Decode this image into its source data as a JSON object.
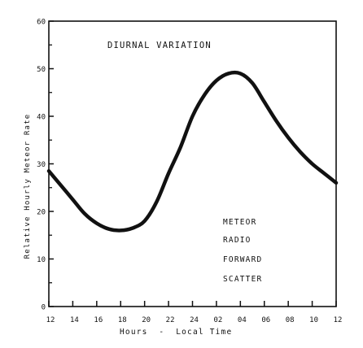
{
  "chart_data": {
    "type": "line",
    "title": "DIURNAL VARIATION",
    "xlabel": "Hours - Local Time",
    "ylabel": "Relative Hourly Meteor Rate",
    "x_tick_labels": [
      "12",
      "14",
      "16",
      "18",
      "20",
      "22",
      "24",
      "02",
      "04",
      "06",
      "08",
      "10",
      "12"
    ],
    "y_ticks": [
      0,
      10,
      20,
      30,
      40,
      50,
      60
    ],
    "xlim": [
      12,
      36
    ],
    "ylim": [
      0,
      60
    ],
    "annotation_lines": [
      "METEOR",
      "RADIO",
      "FORWARD",
      "SCATTER"
    ],
    "series": [
      {
        "x": [
          12,
          13,
          14,
          15,
          16,
          17,
          18,
          19,
          20,
          21,
          22,
          23,
          24,
          25,
          26,
          27,
          28,
          29,
          30,
          31,
          32,
          33,
          34,
          35,
          36
        ],
        "y": [
          28.5,
          25.5,
          22.5,
          19.5,
          17.5,
          16.3,
          16,
          16.5,
          18,
          22,
          28,
          33.5,
          40,
          44.5,
          47.5,
          49,
          49,
          47,
          43,
          39,
          35.5,
          32.5,
          30,
          28,
          26
        ]
      }
    ]
  }
}
